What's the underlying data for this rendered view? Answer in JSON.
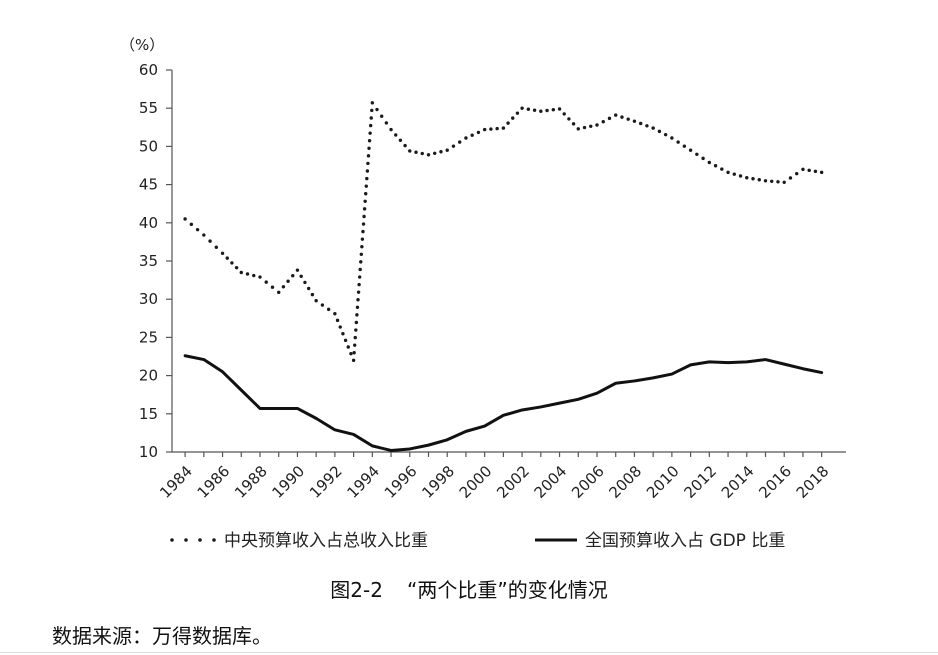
{
  "chart_data": {
    "type": "line",
    "unit_label": "（%）",
    "ylim": [
      10,
      60
    ],
    "yticks": [
      10,
      15,
      20,
      25,
      30,
      35,
      40,
      45,
      50,
      55,
      60
    ],
    "xticks": [
      "1984",
      "1986",
      "1988",
      "1990",
      "1992",
      "1994",
      "1996",
      "1998",
      "2000",
      "2002",
      "2004",
      "2006",
      "2008",
      "2010",
      "2012",
      "2014",
      "2016",
      "2018"
    ],
    "x": [
      1984,
      1985,
      1986,
      1987,
      1988,
      1989,
      1990,
      1991,
      1992,
      1993,
      1994,
      1995,
      1996,
      1997,
      1998,
      1999,
      2000,
      2001,
      2002,
      2003,
      2004,
      2005,
      2006,
      2007,
      2008,
      2009,
      2010,
      2011,
      2012,
      2013,
      2014,
      2015,
      2016,
      2017,
      2018
    ],
    "series": [
      {
        "name": "中央预算收入占总收入比重",
        "style": "dotted",
        "values": [
          40.5,
          38.4,
          36.0,
          33.5,
          32.9,
          30.9,
          33.8,
          29.8,
          28.1,
          22.0,
          55.7,
          52.2,
          49.4,
          48.9,
          49.5,
          51.1,
          52.2,
          52.4,
          55.0,
          54.6,
          54.9,
          52.3,
          52.8,
          54.1,
          53.3,
          52.4,
          51.1,
          49.5,
          47.9,
          46.6,
          45.9,
          45.5,
          45.3,
          47.0,
          46.6
        ]
      },
      {
        "name": "全国预算收入占 GDP 比重",
        "style": "solid",
        "values": [
          22.6,
          22.1,
          20.5,
          18.1,
          15.7,
          15.7,
          15.7,
          14.4,
          12.9,
          12.3,
          10.8,
          10.2,
          10.4,
          10.9,
          11.6,
          12.7,
          13.4,
          14.8,
          15.5,
          15.9,
          16.4,
          16.9,
          17.7,
          19.0,
          19.3,
          19.7,
          20.2,
          21.4,
          21.8,
          21.7,
          21.8,
          22.1,
          21.5,
          20.9,
          20.4
        ]
      }
    ]
  },
  "caption": {
    "number": "图2-2",
    "title": "“两个比重”的变化情况"
  },
  "source": "数据来源：万得数据库。"
}
